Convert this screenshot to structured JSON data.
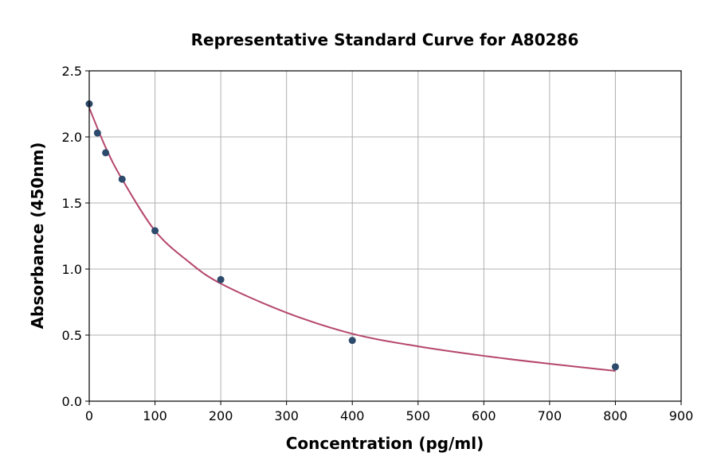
{
  "chart_data": {
    "type": "scatter",
    "title": "Representative Standard Curve for A80286",
    "xlabel": "Concentration (pg/ml)",
    "ylabel": "Absorbance (450nm)",
    "xlim": [
      0,
      900
    ],
    "ylim": [
      0,
      2.5
    ],
    "xticks": [
      "0",
      "100",
      "200",
      "300",
      "400",
      "500",
      "600",
      "700",
      "800",
      "900"
    ],
    "yticks": [
      "0.0",
      "0.5",
      "1.0",
      "1.5",
      "2.0",
      "2.5"
    ],
    "grid": true,
    "points": {
      "x": [
        0,
        12.5,
        25,
        50,
        100,
        200,
        400,
        800
      ],
      "y": [
        2.25,
        2.03,
        1.88,
        1.68,
        1.29,
        0.92,
        0.46,
        0.26
      ],
      "color": "#2c4a6b"
    },
    "fit_curve": {
      "x": [
        0,
        25,
        50,
        100,
        150,
        200,
        300,
        400,
        500,
        600,
        700,
        800
      ],
      "y": [
        2.22,
        1.92,
        1.68,
        1.29,
        1.06,
        0.89,
        0.67,
        0.51,
        0.415,
        0.343,
        0.283,
        0.229
      ],
      "color": "#b5476b"
    }
  }
}
